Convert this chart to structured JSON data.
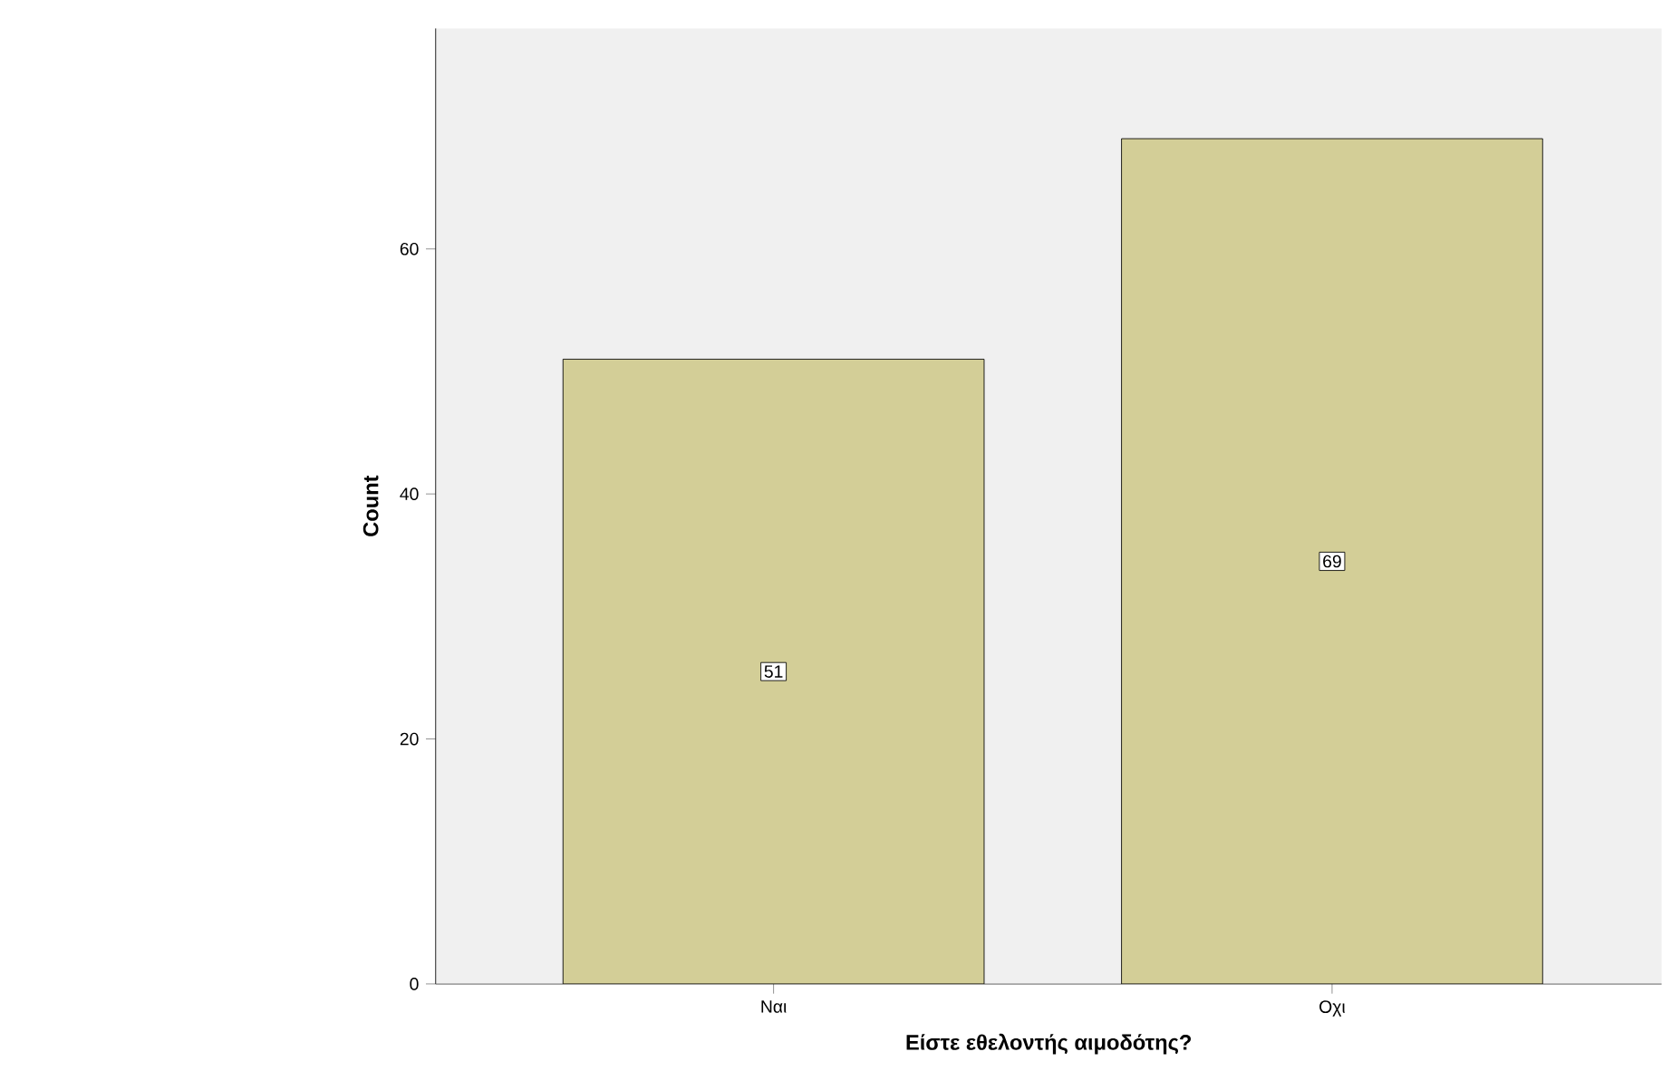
{
  "chart_data": {
    "type": "bar",
    "xlabel": "Είστε εθελοντής αιμοδότης?",
    "ylabel": "Count",
    "categories": [
      "Ναι",
      "Οχι"
    ],
    "values": [
      51,
      69
    ],
    "color": "#d3ce97",
    "ylim": [
      0,
      78
    ],
    "yticks": [
      0,
      20,
      40,
      60
    ],
    "grid": false,
    "data_labels": true
  }
}
